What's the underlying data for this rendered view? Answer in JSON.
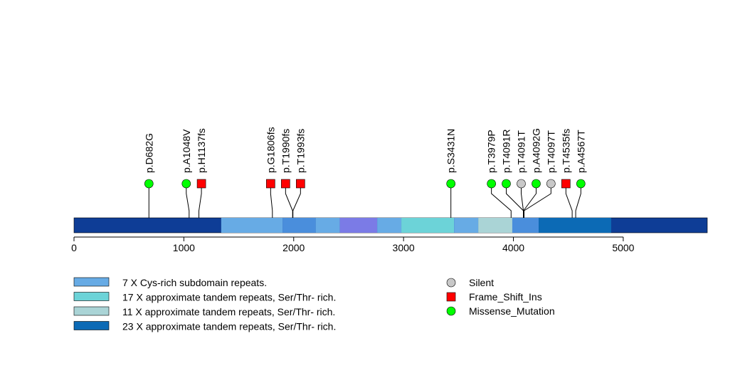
{
  "chart_data": {
    "type": "lollipop",
    "title": "",
    "xlabel": "",
    "ylabel": "",
    "protein_length": 5765,
    "xlim": [
      0,
      5765
    ],
    "x_ticks": [
      0,
      1000,
      2000,
      3000,
      4000,
      5000
    ],
    "domains": [
      {
        "start": 0,
        "end": 5765,
        "color": "#0E3D96",
        "legend": null
      },
      {
        "start": 1340,
        "end": 1900,
        "color": "#67ABE5",
        "legend": "7 X Cys-rich subdomain repeats."
      },
      {
        "start": 1900,
        "end": 2200,
        "color": "#4A8EDC",
        "legend": null
      },
      {
        "start": 2200,
        "end": 2420,
        "color": "#67ABE5",
        "legend": null
      },
      {
        "start": 2420,
        "end": 2760,
        "color": "#7B7BE6",
        "legend": null
      },
      {
        "start": 2760,
        "end": 2980,
        "color": "#67ABE5",
        "legend": null
      },
      {
        "start": 2980,
        "end": 3460,
        "color": "#6CD3D8",
        "legend": "17 X approximate tandem repeats, Ser/Thr- rich."
      },
      {
        "start": 3460,
        "end": 3680,
        "color": "#67ABE5",
        "legend": null
      },
      {
        "start": 3680,
        "end": 3990,
        "color": "#AAD4D6",
        "legend": "11 X approximate tandem repeats, Ser/Thr- rich."
      },
      {
        "start": 3990,
        "end": 4230,
        "color": "#4A8EDC",
        "legend": null
      },
      {
        "start": 4230,
        "end": 4890,
        "color": "#0C6AB5",
        "legend": "23 X approximate tandem repeats, Ser/Thr- rich."
      }
    ],
    "mutations": [
      {
        "label": "p.D682G",
        "position": 682,
        "display_position": 682,
        "type": "Missense_Mutation"
      },
      {
        "label": "p.A1048V",
        "position": 1048,
        "display_position": 1022,
        "type": "Missense_Mutation"
      },
      {
        "label": "p.H1137fs",
        "position": 1137,
        "display_position": 1160,
        "type": "Frame_Shift_Ins"
      },
      {
        "label": "p.G1806fs",
        "position": 1806,
        "display_position": 1790,
        "type": "Frame_Shift_Ins"
      },
      {
        "label": "p.T1990fs",
        "position": 1990,
        "display_position": 1926,
        "type": "Frame_Shift_Ins"
      },
      {
        "label": "p.T1993fs",
        "position": 1993,
        "display_position": 2062,
        "type": "Frame_Shift_Ins"
      },
      {
        "label": "p.S3431N",
        "position": 3431,
        "display_position": 3431,
        "type": "Missense_Mutation"
      },
      {
        "label": "p.T3979P",
        "position": 3979,
        "display_position": 3800,
        "type": "Missense_Mutation"
      },
      {
        "label": "p.T4091R",
        "position": 4091,
        "display_position": 3935,
        "type": "Missense_Mutation"
      },
      {
        "label": "p.T4091T",
        "position": 4091,
        "display_position": 4071,
        "type": "Silent"
      },
      {
        "label": "p.A4092G",
        "position": 4092,
        "display_position": 4207,
        "type": "Missense_Mutation"
      },
      {
        "label": "p.T4097T",
        "position": 4097,
        "display_position": 4342,
        "type": "Silent"
      },
      {
        "label": "p.T4535fs",
        "position": 4535,
        "display_position": 4478,
        "type": "Frame_Shift_Ins"
      },
      {
        "label": "p.A4567T",
        "position": 4567,
        "display_position": 4614,
        "type": "Missense_Mutation"
      }
    ],
    "mutation_types": [
      {
        "name": "Silent",
        "color": "#C8C8C8",
        "shape": "circle"
      },
      {
        "name": "Frame_Shift_Ins",
        "color": "#FF0000",
        "shape": "square"
      },
      {
        "name": "Missense_Mutation",
        "color": "#00FF00",
        "shape": "circle"
      }
    ],
    "domain_legend": [
      {
        "label": "7 X Cys-rich subdomain repeats.",
        "color": "#67ABE5"
      },
      {
        "label": "17 X approximate tandem repeats, Ser/Thr- rich.",
        "color": "#6CD3D8"
      },
      {
        "label": "11 X approximate tandem repeats, Ser/Thr- rich.",
        "color": "#AAD4D6"
      },
      {
        "label": "23 X approximate tandem repeats, Ser/Thr- rich.",
        "color": "#0C6AB5"
      }
    ]
  }
}
